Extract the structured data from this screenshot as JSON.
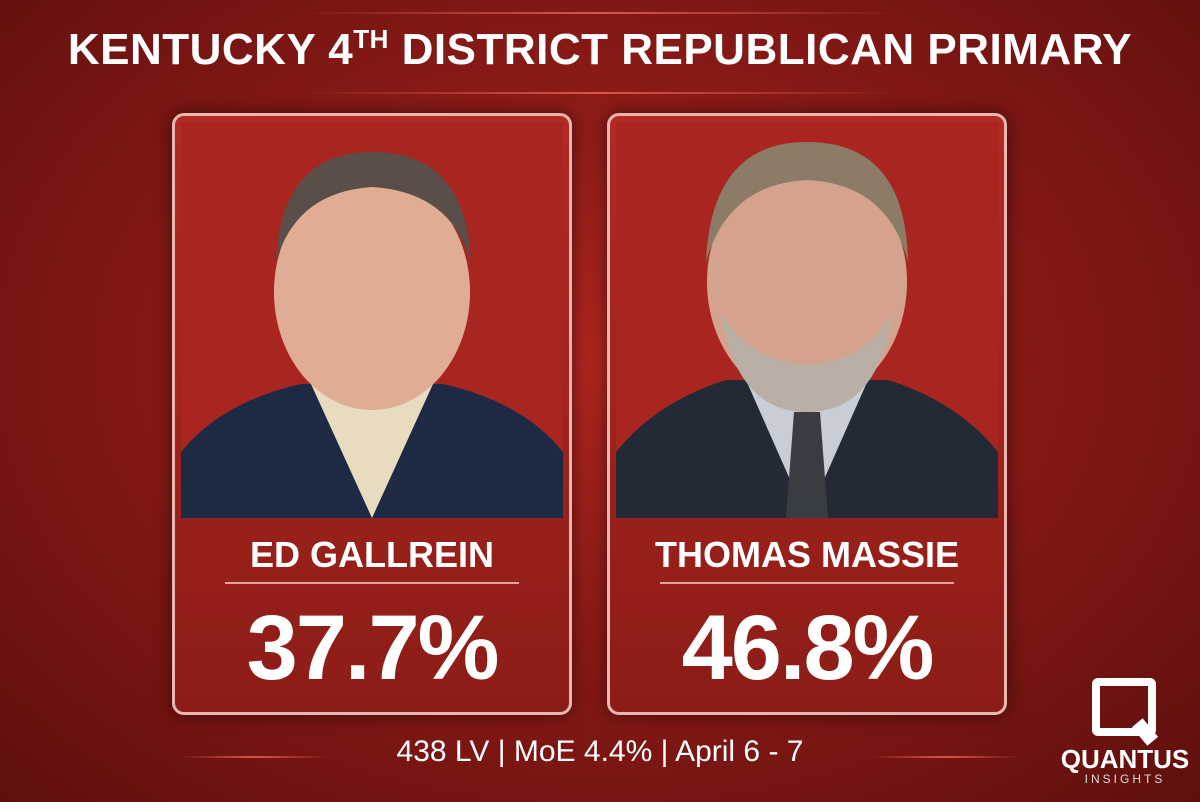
{
  "header": {
    "title_start": "KENTUCKY 4",
    "title_sup": "TH",
    "title_end": " DISTRICT REPUBLICAN PRIMARY"
  },
  "candidates": [
    {
      "name": "ED GALLREIN",
      "result": "37.7%"
    },
    {
      "name": "THOMAS MASSIE",
      "result": "46.8%"
    }
  ],
  "footer": "438 LV | MoE 4.4% | April 6 - 7",
  "logo": {
    "mark": "Q",
    "name": "QUANTUS",
    "tagline": "INSIGHTS"
  }
}
